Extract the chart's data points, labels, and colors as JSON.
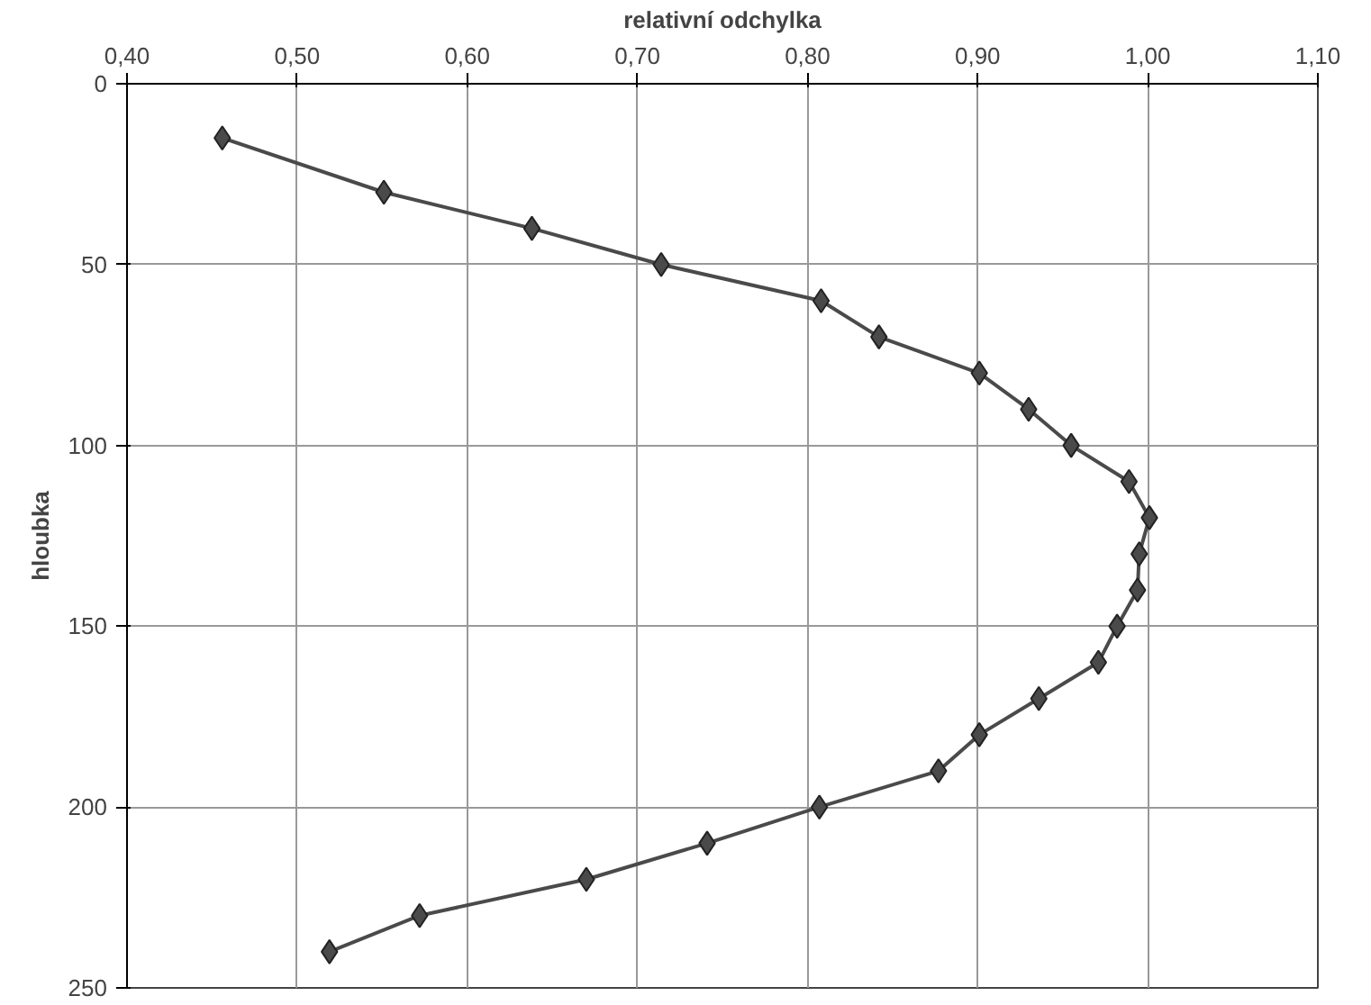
{
  "chart_data": {
    "type": "line",
    "xlabel": "relativní odchylka",
    "ylabel": "hloubka",
    "x": [
      0.456,
      0.551,
      0.638,
      0.714,
      0.808,
      0.842,
      0.901,
      0.93,
      0.955,
      0.989,
      1.001,
      0.995,
      0.994,
      0.982,
      0.971,
      0.936,
      0.901,
      0.877,
      0.807,
      0.741,
      0.67,
      0.572,
      0.519
    ],
    "series": [
      {
        "color": "#4a4a4a",
        "values": [
          15,
          30,
          40,
          50,
          60,
          70,
          80,
          90,
          100,
          110,
          120,
          130,
          140,
          150,
          160,
          170,
          180,
          190,
          200,
          210,
          220,
          230,
          240
        ]
      }
    ],
    "xlim": [
      0.4,
      1.1
    ],
    "xticks": [
      {
        "value": 0.4,
        "label": "0,40"
      },
      {
        "value": 0.5,
        "label": "0,50"
      },
      {
        "value": 0.6,
        "label": "0,60"
      },
      {
        "value": 0.7,
        "label": "0,70"
      },
      {
        "value": 0.8,
        "label": "0,80"
      },
      {
        "value": 0.9,
        "label": "0,90"
      },
      {
        "value": 1.0,
        "label": "1,00"
      },
      {
        "value": 1.1,
        "label": "1,10"
      }
    ],
    "ylim": [
      250,
      0
    ],
    "yticks": [
      0,
      50,
      100,
      150,
      200,
      250
    ],
    "grid": true,
    "marker": "diamond",
    "line_style": "solid"
  }
}
